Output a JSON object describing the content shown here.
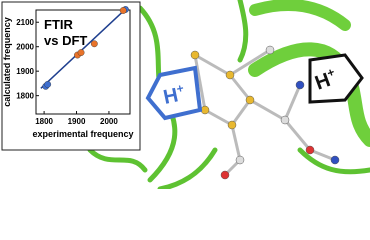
{
  "chart_data": {
    "type": "scatter",
    "title": [
      "FTIR",
      "vs DFT"
    ],
    "x_label": "experimental frequency",
    "y_label": "calculated frequency",
    "xlim": [
      1775,
      2065
    ],
    "ylim": [
      1725,
      2150
    ],
    "xticks": [
      1800,
      1900,
      2000
    ],
    "yticks": [
      1800,
      1900,
      2000,
      2100
    ],
    "series": [
      {
        "color": "#3f6fcf",
        "x": [
          1805,
          1811,
          2051
        ],
        "values": [
          1838,
          1846,
          2152
        ]
      },
      {
        "color": "#e8732a",
        "x": [
          1903,
          1914,
          1955,
          2044
        ],
        "values": [
          1966,
          1976,
          2012,
          2148
        ]
      }
    ],
    "fit_line": {
      "color": "#1f3f8f",
      "x": [
        1790,
        2058
      ],
      "values": [
        1830,
        2162
      ]
    }
  },
  "arrow_labels": [
    {
      "base": "H",
      "sup": "+"
    },
    {
      "base": "H",
      "sup": "+"
    }
  ]
}
